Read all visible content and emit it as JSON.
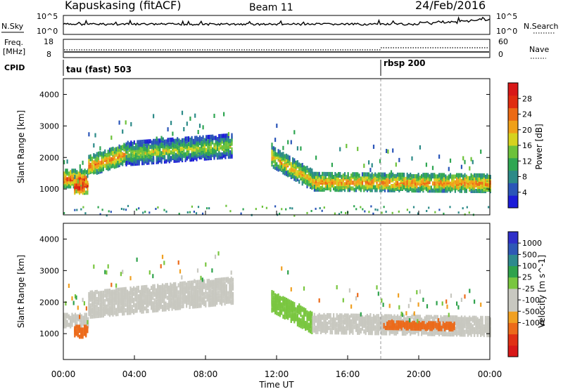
{
  "header": {
    "station": "Kapuskasing (fitACF)",
    "beam": "Beam 11",
    "date": "24/Feb/2016"
  },
  "top_panels": {
    "nsky_label": "N.Sky",
    "nsky_ticks": [
      "10^5",
      "10^0"
    ],
    "nsearch_label": "N.Search",
    "nsearch_ticks": [
      "10^5",
      "10^0"
    ],
    "freq_label": "Freq.",
    "freq_unit": "[MHz]",
    "freq_ticks": [
      "18",
      "8"
    ],
    "nave_label": "Nave",
    "nave_ticks": [
      "60",
      "0"
    ],
    "cpid_label": "CPID",
    "cpid_segments": [
      {
        "label": "tau (fast) 503",
        "start_hour": 0
      },
      {
        "label": "rbsp 200",
        "start_hour": 18
      }
    ]
  },
  "axes": {
    "xlabel": "Time UT",
    "xticks": [
      "00:00",
      "04:00",
      "08:00",
      "12:00",
      "16:00",
      "20:00",
      "00:00"
    ],
    "ylabel": "Slant Range [km]",
    "yticks": [
      "1000",
      "2000",
      "3000",
      "4000"
    ]
  },
  "colorbars": {
    "power": {
      "label": "Power [dB]",
      "ticks": [
        "4",
        "8",
        "12",
        "16",
        "20",
        "24",
        "28"
      ],
      "colors": [
        "#1c1cd8",
        "#2a55b8",
        "#2c8a88",
        "#2fa652",
        "#6dc23a",
        "#d6d21e",
        "#f0a018",
        "#ec6a14",
        "#e02c10",
        "#d81818"
      ]
    },
    "velocity": {
      "label": "Velocity [m s^-1]",
      "ticks": [
        "1000",
        "500",
        "100",
        "25",
        "-25",
        "-100",
        "-500",
        "-1000"
      ],
      "colors": [
        "#2f2fc9",
        "#2e58b6",
        "#2e8a8e",
        "#2fa24c",
        "#79c63f",
        "#c8c8c0",
        "#c8c8c0",
        "#f0a022",
        "#ec6a1a",
        "#e03014",
        "#d81818"
      ]
    }
  },
  "chart_data": [
    {
      "type": "heatmap",
      "title": "Power",
      "x_range_hours": [
        0,
        24
      ],
      "y_range_km": [
        180,
        4500
      ],
      "colorbar_range_db": [
        0,
        30
      ],
      "echo_bands": [
        {
          "t_start": 0.0,
          "t_end": 1.4,
          "range_center_km": [
            1400,
            1400
          ],
          "width_km": 250,
          "power_db": 24
        },
        {
          "t_start": 0.6,
          "t_end": 1.4,
          "range_center_km": [
            1150,
            1150
          ],
          "width_km": 200,
          "power_db": 28
        },
        {
          "t_start": 1.4,
          "t_end": 3.5,
          "range_center_km": [
            1800,
            2200
          ],
          "width_km": 300,
          "power_db": 22
        },
        {
          "t_start": 3.5,
          "t_end": 9.5,
          "range_center_km": [
            2200,
            2450
          ],
          "width_km": 350,
          "power_db": 16
        },
        {
          "t_start": 11.7,
          "t_end": 14.0,
          "range_center_km": [
            2100,
            1350
          ],
          "width_km": 300,
          "power_db": 20
        },
        {
          "t_start": 14.0,
          "t_end": 24.0,
          "range_center_km": [
            1300,
            1250
          ],
          "width_km": 250,
          "power_db": 22
        }
      ],
      "ground_scatter_band_km": [
        180,
        500
      ]
    },
    {
      "type": "heatmap",
      "title": "Velocity",
      "x_range_hours": [
        0,
        24
      ],
      "y_range_km": [
        180,
        4500
      ],
      "colorbar_range_ms": [
        -1000,
        1000
      ],
      "echo_bands": [
        {
          "t_start": 0.0,
          "t_end": 1.4,
          "range_center_km": [
            1500,
            1500
          ],
          "width_km": 200,
          "velocity_ms": 0
        },
        {
          "t_start": 0.6,
          "t_end": 1.4,
          "range_center_km": [
            1150,
            1150
          ],
          "width_km": 180,
          "velocity_ms": -300
        },
        {
          "t_start": 1.4,
          "t_end": 9.5,
          "range_center_km": [
            2000,
            2450
          ],
          "width_km": 400,
          "velocity_ms": 0
        },
        {
          "t_start": 11.7,
          "t_end": 14.0,
          "range_center_km": [
            2100,
            1400
          ],
          "width_km": 300,
          "velocity_ms": 60
        },
        {
          "t_start": 14.0,
          "t_end": 24.0,
          "range_center_km": [
            1400,
            1300
          ],
          "width_km": 280,
          "velocity_ms": 0
        },
        {
          "t_start": 18.0,
          "t_end": 22.0,
          "range_center_km": [
            1350,
            1300
          ],
          "width_km": 100,
          "velocity_ms": -250
        }
      ]
    }
  ]
}
